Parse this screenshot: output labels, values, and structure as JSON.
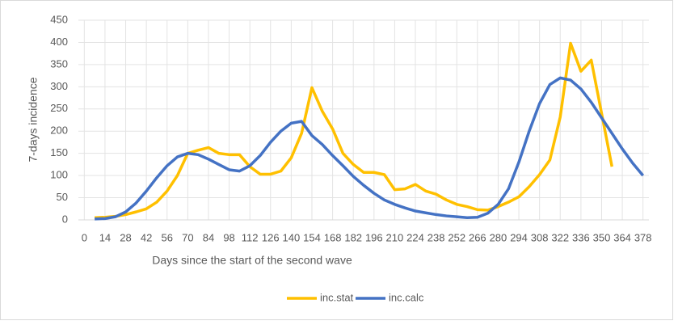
{
  "chart_data": {
    "type": "line",
    "xlabel": "Days since the start of the second wave",
    "ylabel": "7-days incidence",
    "xlim": [
      -4,
      382
    ],
    "xticks": [
      0,
      14,
      28,
      42,
      56,
      70,
      84,
      98,
      112,
      126,
      140,
      154,
      168,
      182,
      196,
      210,
      224,
      238,
      252,
      266,
      280,
      294,
      308,
      322,
      336,
      350,
      364,
      378
    ],
    "ylim": [
      0,
      450
    ],
    "yticks": [
      0,
      50,
      100,
      150,
      200,
      250,
      300,
      350,
      400,
      450
    ],
    "grid": true,
    "legend": "bottom",
    "series": [
      {
        "name": "inc.stat",
        "color": "#ffc000",
        "x": [
          7,
          14,
          21,
          28,
          35,
          42,
          49,
          56,
          63,
          70,
          77,
          84,
          91,
          98,
          105,
          112,
          119,
          126,
          133,
          140,
          147,
          154,
          161,
          168,
          175,
          182,
          189,
          196,
          203,
          210,
          217,
          224,
          231,
          238,
          245,
          252,
          259,
          266,
          273,
          280,
          287,
          294,
          301,
          308,
          315,
          322,
          329,
          336,
          343,
          350,
          357
        ],
        "values": [
          5,
          6,
          8,
          12,
          18,
          25,
          40,
          65,
          100,
          150,
          157,
          163,
          150,
          147,
          147,
          120,
          103,
          103,
          110,
          140,
          195,
          298,
          245,
          205,
          150,
          125,
          107,
          107,
          102,
          68,
          70,
          80,
          65,
          58,
          45,
          35,
          30,
          23,
          22,
          30,
          40,
          52,
          75,
          102,
          135,
          232,
          398,
          335,
          360,
          240,
          120
        ]
      },
      {
        "name": "inc.calc",
        "color": "#4472c4",
        "x": [
          7,
          14,
          21,
          28,
          35,
          42,
          49,
          56,
          63,
          70,
          77,
          84,
          91,
          98,
          105,
          112,
          119,
          126,
          133,
          140,
          147,
          154,
          161,
          168,
          175,
          182,
          189,
          196,
          203,
          210,
          217,
          224,
          231,
          238,
          245,
          252,
          259,
          266,
          273,
          280,
          287,
          294,
          301,
          308,
          315,
          322,
          329,
          336,
          343,
          350,
          357,
          364,
          371,
          378
        ],
        "values": [
          2,
          3,
          7,
          18,
          38,
          65,
          95,
          122,
          142,
          150,
          147,
          137,
          125,
          113,
          110,
          122,
          145,
          175,
          200,
          218,
          222,
          190,
          170,
          145,
          122,
          98,
          78,
          60,
          45,
          35,
          27,
          20,
          16,
          12,
          9,
          7,
          5,
          6,
          15,
          35,
          70,
          130,
          200,
          262,
          305,
          320,
          315,
          295,
          265,
          230,
          195,
          160,
          128,
          100
        ]
      }
    ]
  }
}
